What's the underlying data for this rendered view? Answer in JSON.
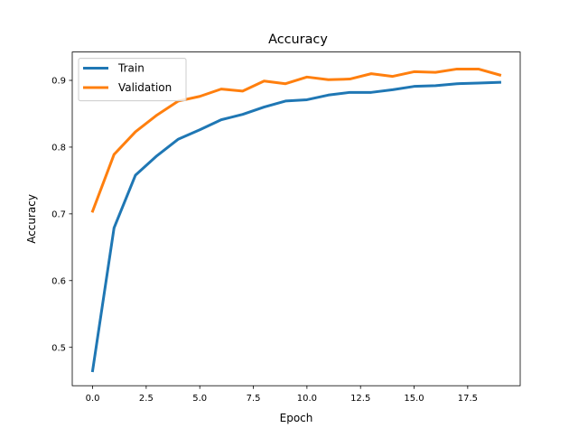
{
  "chart_data": {
    "type": "line",
    "title": "Accuracy",
    "xlabel": "Epoch",
    "ylabel": "Accuracy",
    "xlim": [
      -0.95,
      19.95
    ],
    "ylim": [
      0.4425,
      0.9425
    ],
    "xticks": [
      0.0,
      2.5,
      5.0,
      7.5,
      10.0,
      12.5,
      15.0,
      17.5
    ],
    "xtick_labels": [
      "0.0",
      "2.5",
      "5.0",
      "7.5",
      "10.0",
      "12.5",
      "15.0",
      "17.5"
    ],
    "yticks": [
      0.5,
      0.6,
      0.7,
      0.8,
      0.9
    ],
    "ytick_labels": [
      "0.5",
      "0.6",
      "0.7",
      "0.8",
      "0.9"
    ],
    "grid": false,
    "legend_position": "top-left",
    "x": [
      0,
      1,
      2,
      3,
      4,
      5,
      6,
      7,
      8,
      9,
      10,
      11,
      12,
      13,
      14,
      15,
      16,
      17,
      18,
      19
    ],
    "series": [
      {
        "name": "Train",
        "color": "#1f77b4",
        "values": [
          0.465,
          0.679,
          0.758,
          0.787,
          0.812,
          0.826,
          0.841,
          0.849,
          0.86,
          0.869,
          0.871,
          0.878,
          0.882,
          0.882,
          0.886,
          0.891,
          0.892,
          0.895,
          0.896,
          0.897
        ]
      },
      {
        "name": "Validation",
        "color": "#ff7f0e",
        "values": [
          0.704,
          0.789,
          0.823,
          0.848,
          0.869,
          0.876,
          0.887,
          0.884,
          0.899,
          0.895,
          0.905,
          0.901,
          0.902,
          0.91,
          0.906,
          0.913,
          0.912,
          0.917,
          0.917,
          0.908
        ]
      }
    ]
  }
}
